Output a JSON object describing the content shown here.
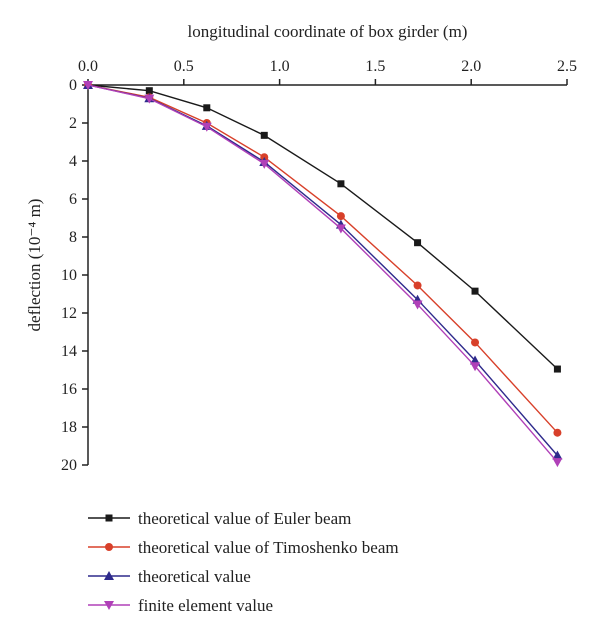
{
  "chart_data": {
    "type": "line",
    "xlabel": "longitudinal coordinate of box girder (m)",
    "ylabel": "deflection (10⁻⁴ m)",
    "xlim": [
      0,
      2.5
    ],
    "ylim": [
      0,
      20
    ],
    "y_inverted": true,
    "x_axis_position": "top",
    "xticks": [
      "0.0",
      "0.5",
      "1.0",
      "1.5",
      "2.0",
      "2.5"
    ],
    "xtick_values": [
      0,
      0.5,
      1.0,
      1.5,
      2.0,
      2.5
    ],
    "yticks": [
      "0",
      "2",
      "4",
      "6",
      "8",
      "10",
      "12",
      "14",
      "16",
      "18",
      "20"
    ],
    "ytick_values": [
      0,
      2,
      4,
      6,
      8,
      10,
      12,
      14,
      16,
      18,
      20
    ],
    "grid": false,
    "legend_position": "bottom",
    "series": [
      {
        "name": "theoretical value of Euler beam",
        "color": "#1a1a1a",
        "marker": "square",
        "x": [
          0.0,
          0.32,
          0.62,
          0.92,
          1.32,
          1.72,
          2.02,
          2.45
        ],
        "y": [
          0.0,
          0.3,
          1.2,
          2.65,
          5.2,
          8.3,
          10.85,
          14.95
        ]
      },
      {
        "name": "theoretical value of Timoshenko beam",
        "color": "#d8402a",
        "marker": "circle",
        "x": [
          0.0,
          0.32,
          0.62,
          0.92,
          1.32,
          1.72,
          2.02,
          2.45
        ],
        "y": [
          0.0,
          0.65,
          2.0,
          3.8,
          6.9,
          10.55,
          13.55,
          18.3
        ]
      },
      {
        "name": "theoretical value",
        "color": "#2e2a8c",
        "marker": "triangle-up",
        "x": [
          0.0,
          0.32,
          0.62,
          0.92,
          1.32,
          1.72,
          2.02,
          2.45
        ],
        "y": [
          0.0,
          0.7,
          2.15,
          4.05,
          7.35,
          11.3,
          14.5,
          19.5
        ]
      },
      {
        "name": "finite element value",
        "color": "#b040b8",
        "marker": "triangle-down",
        "x": [
          0.0,
          0.32,
          0.62,
          0.92,
          1.32,
          1.72,
          2.02,
          2.45
        ],
        "y": [
          0.0,
          0.72,
          2.2,
          4.15,
          7.55,
          11.55,
          14.8,
          19.85
        ]
      }
    ]
  }
}
